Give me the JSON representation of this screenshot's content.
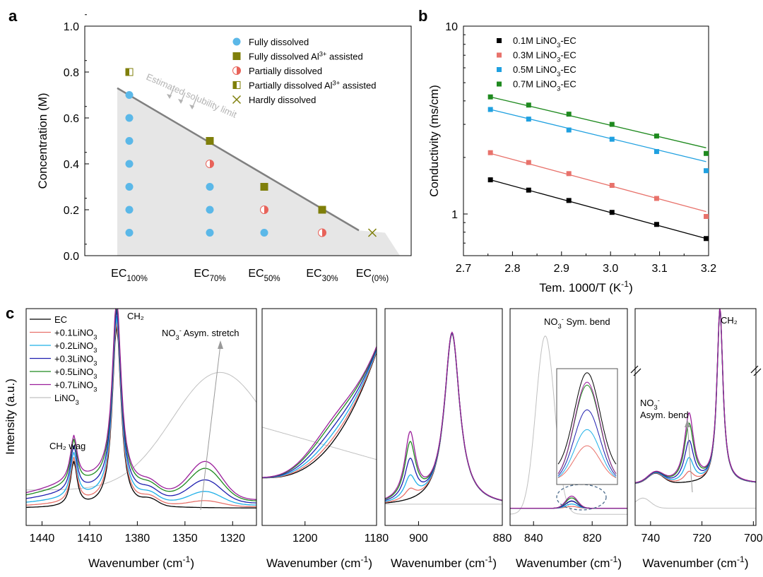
{
  "panel_letters": [
    "a",
    "b",
    "c"
  ],
  "chart_data": [
    {
      "id": "a",
      "type": "scatter",
      "ylabel": "Concentration (M)",
      "ylim": [
        0.0,
        1.0
      ],
      "yticks": [
        "0.0",
        "0.2",
        "0.4",
        "0.6",
        "0.8",
        "1.0"
      ],
      "categories": [
        {
          "main": "EC",
          "sub": "100%"
        },
        {
          "main": "EC",
          "sub": "70%"
        },
        {
          "main": "EC",
          "sub": "50%"
        },
        {
          "main": "EC",
          "sub": "30%"
        },
        {
          "main": "EC",
          "sub": "(0%)"
        }
      ],
      "legend": [
        {
          "key": "full",
          "text": "Fully dissolved"
        },
        {
          "key": "fullAl",
          "text": "Fully dissolved Al",
          "sup": "3+",
          "tail": " assisted"
        },
        {
          "key": "partial",
          "text": "Partially dissolved"
        },
        {
          "key": "partialAl",
          "text": "Partially dissolved Al",
          "sup": "3+",
          "tail": " assisted"
        },
        {
          "key": "hardly",
          "text": "Hardly dissolved"
        }
      ],
      "points": [
        {
          "cat": 0,
          "y": 0.1,
          "kind": "full"
        },
        {
          "cat": 0,
          "y": 0.2,
          "kind": "full"
        },
        {
          "cat": 0,
          "y": 0.3,
          "kind": "full"
        },
        {
          "cat": 0,
          "y": 0.4,
          "kind": "full"
        },
        {
          "cat": 0,
          "y": 0.5,
          "kind": "full"
        },
        {
          "cat": 0,
          "y": 0.6,
          "kind": "full"
        },
        {
          "cat": 0,
          "y": 0.7,
          "kind": "full"
        },
        {
          "cat": 0,
          "y": 0.8,
          "kind": "partialAl"
        },
        {
          "cat": 1,
          "y": 0.1,
          "kind": "full"
        },
        {
          "cat": 1,
          "y": 0.2,
          "kind": "full"
        },
        {
          "cat": 1,
          "y": 0.3,
          "kind": "full"
        },
        {
          "cat": 1,
          "y": 0.4,
          "kind": "partial"
        },
        {
          "cat": 1,
          "y": 0.5,
          "kind": "fullAl"
        },
        {
          "cat": 2,
          "y": 0.1,
          "kind": "full"
        },
        {
          "cat": 2,
          "y": 0.2,
          "kind": "partial"
        },
        {
          "cat": 2,
          "y": 0.3,
          "kind": "fullAl"
        },
        {
          "cat": 3,
          "y": 0.1,
          "kind": "partial"
        },
        {
          "cat": 3,
          "y": 0.2,
          "kind": "fullAl"
        },
        {
          "cat": 4,
          "y": 0.1,
          "kind": "hardly"
        }
      ],
      "annotation": "Estimated solubility limit",
      "colors": {
        "full": "#5bb8e8",
        "fullAl": "#7f7f0a",
        "partial": "#e8635a",
        "hardly": "#7f7f0a",
        "limit": "#808080",
        "region": "#e6e6e6",
        "annot": "#b3b3b3"
      }
    },
    {
      "id": "b",
      "type": "scatter",
      "xlabel": "Tem. 1000/T (K",
      "xlabel_sup": "-1",
      "xlabel_tail": ")",
      "ylabel": "Conductivity (ms/cm)",
      "yscale": "log",
      "xlim": [
        2.7,
        3.2
      ],
      "ylim": [
        0.6,
        10
      ],
      "xticks": [
        2.7,
        2.8,
        2.9,
        3.0,
        3.1,
        3.2
      ],
      "xtick_labels": [
        "2.7",
        "2.8",
        "2.9",
        "3.0",
        "3.1",
        "3.2"
      ],
      "yticks": [
        1,
        10
      ],
      "ytick_labels": [
        "1",
        "10"
      ],
      "x": [
        2.755,
        2.833,
        2.915,
        3.003,
        3.094,
        3.195
      ],
      "series": [
        {
          "name": "0.1M LiNO",
          "sub": "3",
          "tail": "-EC",
          "color": "#000000",
          "values": [
            1.52,
            1.34,
            1.18,
            1.02,
            0.88,
            0.74
          ],
          "fit": [
            1.52,
            0.74
          ]
        },
        {
          "name": "0.3M LiNO",
          "sub": "3",
          "tail": "-EC",
          "color": "#e8726b",
          "values": [
            2.12,
            1.88,
            1.64,
            1.42,
            1.21,
            0.97
          ],
          "fit": [
            2.1,
            1.03
          ]
        },
        {
          "name": "0.5M LiNO",
          "sub": "3",
          "tail": "-EC",
          "color": "#1fa0e0",
          "values": [
            3.6,
            3.2,
            2.8,
            2.5,
            2.15,
            1.7
          ],
          "fit": [
            3.6,
            1.9
          ]
        },
        {
          "name": "0.7M LiNO",
          "sub": "3",
          "tail": "-EC",
          "color": "#1f8a1f",
          "values": [
            4.2,
            3.8,
            3.4,
            3.0,
            2.6,
            2.1
          ],
          "fit": [
            4.2,
            2.25
          ]
        }
      ]
    },
    {
      "id": "c",
      "type": "line",
      "ylabel": "Intensity (a.u.)",
      "xlabel": "Wavenumber (cm",
      "xlabel_sup": "-1",
      "xlabel_tail": ")",
      "legend": [
        {
          "name": "EC",
          "color": "#000000"
        },
        {
          "name": "+0.1LiNO",
          "sub": "3",
          "color": "#e8726b"
        },
        {
          "name": "+0.2LiNO",
          "sub": "3",
          "color": "#1fb0e8"
        },
        {
          "name": "+0.3LiNO",
          "sub": "3",
          "color": "#1f1fb0"
        },
        {
          "name": "+0.5LiNO",
          "sub": "3",
          "color": "#1f8a1f"
        },
        {
          "name": "+0.7LiNO",
          "sub": "3",
          "color": "#9b1f9b"
        },
        {
          "name": "LiNO",
          "sub": "3",
          "color": "#c0c0c0"
        }
      ],
      "subpanels": [
        {
          "xlim": [
            1450,
            1305
          ],
          "xticks": [
            1440,
            1410,
            1380,
            1350,
            1320
          ],
          "xtick_labels": [
            "1440",
            "1410",
            "1380",
            "1350",
            "1320"
          ]
        },
        {
          "xlim": [
            1212,
            1180
          ],
          "xticks": [
            1200,
            1180
          ],
          "xtick_labels": [
            "1200",
            "1180"
          ]
        },
        {
          "xlim": [
            908,
            880
          ],
          "xticks": [
            900,
            880
          ],
          "xtick_labels": [
            "900",
            "880"
          ]
        },
        {
          "xlim": [
            848,
            808
          ],
          "xticks": [
            840,
            820
          ],
          "xtick_labels": [
            "840",
            "820"
          ]
        },
        {
          "xlim": [
            746,
            699
          ],
          "xticks": [
            740,
            720,
            700
          ],
          "xtick_labels": [
            "740",
            "720",
            "700"
          ]
        }
      ],
      "annotations": {
        "ch2_wag": "CH₂ wag",
        "ch2_a": "CH₂",
        "asym_stretch_pre": "NO",
        "asym_stretch_sub": "3",
        "asym_stretch_sup": "-",
        "asym_stretch_post": " Asym. stretch",
        "sym_bend_pre": "NO",
        "sym_bend_sub": "3",
        "sym_bend_sup": "-",
        "sym_bend_post": " Sym. bend",
        "asym_bend_pre": "NO",
        "asym_bend_sub": "3",
        "asym_bend_sup": "-",
        "asym_bend_post": "Asym. bend",
        "ch2_e": "CH₂"
      }
    }
  ]
}
